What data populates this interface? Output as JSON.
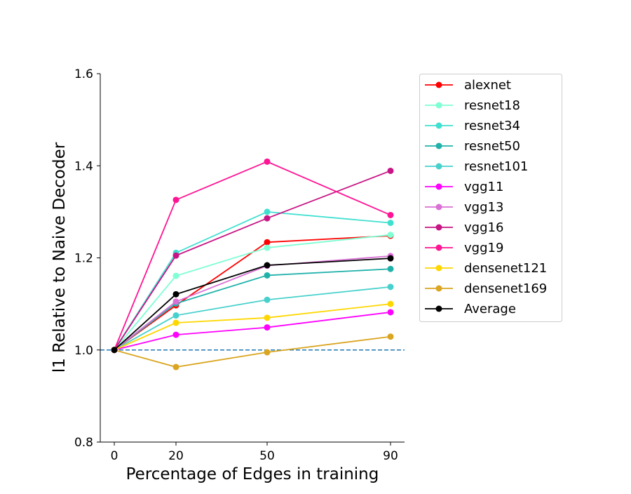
{
  "chart_data": {
    "type": "line",
    "title": "",
    "xlabel": "Percentage of Edges in training",
    "ylabel": "l1 Relative to Naive Decoder",
    "x": [
      0,
      20,
      50,
      90
    ],
    "x_ticks": [
      "0",
      "20",
      "50",
      "90"
    ],
    "ylim": [
      0.8,
      1.6
    ],
    "y_ticks": [
      "0.8",
      "1.0",
      "1.2",
      "1.4",
      "1.6"
    ],
    "reference_line": {
      "y": 1.0,
      "style": "dashed",
      "color": "#1f77b4"
    },
    "legend_position": "outside-right",
    "grid": false,
    "series": [
      {
        "name": "alexnet",
        "color": "#ff0000",
        "values": [
          1.0,
          1.097,
          1.234,
          1.248
        ]
      },
      {
        "name": "resnet18",
        "color": "#7fffd4",
        "values": [
          1.0,
          1.161,
          1.222,
          1.25
        ]
      },
      {
        "name": "resnet34",
        "color": "#40e0d0",
        "values": [
          1.0,
          1.211,
          1.3,
          1.276
        ]
      },
      {
        "name": "resnet50",
        "color": "#20b2aa",
        "values": [
          1.0,
          1.101,
          1.162,
          1.176
        ]
      },
      {
        "name": "resnet101",
        "color": "#48d1cc",
        "values": [
          1.0,
          1.075,
          1.109,
          1.137
        ]
      },
      {
        "name": "vgg11",
        "color": "#ff00ff",
        "values": [
          1.0,
          1.033,
          1.049,
          1.082
        ]
      },
      {
        "name": "vgg13",
        "color": "#da70d6",
        "values": [
          1.0,
          1.105,
          1.183,
          1.204
        ]
      },
      {
        "name": "vgg16",
        "color": "#c71585",
        "values": [
          1.0,
          1.205,
          1.286,
          1.389
        ]
      },
      {
        "name": "vgg19",
        "color": "#ff1493",
        "values": [
          1.0,
          1.326,
          1.409,
          1.293
        ]
      },
      {
        "name": "densenet121",
        "color": "#ffd700",
        "values": [
          1.0,
          1.059,
          1.07,
          1.1
        ]
      },
      {
        "name": "densenet169",
        "color": "#daa520",
        "values": [
          1.0,
          0.963,
          0.995,
          1.029
        ]
      },
      {
        "name": "Average",
        "color": "#000000",
        "values": [
          1.0,
          1.121,
          1.184,
          1.199
        ]
      }
    ]
  }
}
